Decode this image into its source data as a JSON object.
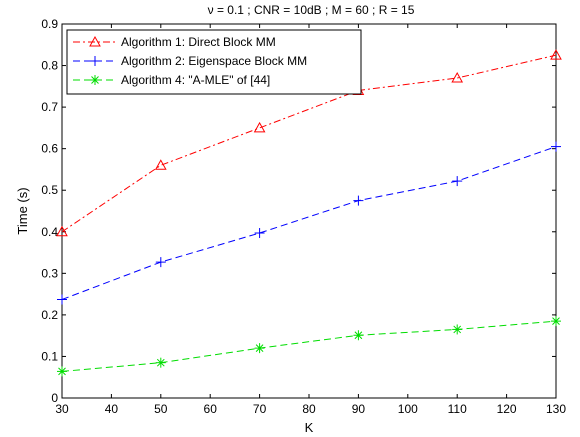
{
  "chart_data": {
    "type": "line",
    "title": "ν = 0.1 ; CNR = 10dB ; M = 60 ; R = 15",
    "xlabel": "K",
    "ylabel": "Time (s)",
    "xlim": [
      30,
      130
    ],
    "ylim": [
      0,
      0.9
    ],
    "xticks": [
      30,
      40,
      50,
      60,
      70,
      80,
      90,
      100,
      110,
      120,
      130
    ],
    "yticks": [
      0,
      0.1,
      0.2,
      0.3,
      0.4,
      0.5,
      0.6,
      0.7,
      0.8,
      0.9
    ],
    "x": [
      30,
      50,
      70,
      90,
      110,
      130
    ],
    "grid": false,
    "legend_position": "top-left",
    "series": [
      {
        "name": "Algorithm 1: Direct Block MM",
        "values": [
          0.4,
          0.56,
          0.65,
          0.74,
          0.77,
          0.825
        ],
        "color": "#ff0000",
        "dash": "dash-dot",
        "marker": "triangle"
      },
      {
        "name": "Algorithm 2: Eigenspace Block MM",
        "values": [
          0.237,
          0.327,
          0.397,
          0.475,
          0.522,
          0.605
        ],
        "color": "#0000ff",
        "dash": "dashed",
        "marker": "plus"
      },
      {
        "name": "Algorithm 4: \"A-MLE\" of [44]",
        "values": [
          0.064,
          0.085,
          0.12,
          0.151,
          0.165,
          0.185
        ],
        "color": "#00dd00",
        "dash": "dashed",
        "marker": "star"
      }
    ]
  }
}
